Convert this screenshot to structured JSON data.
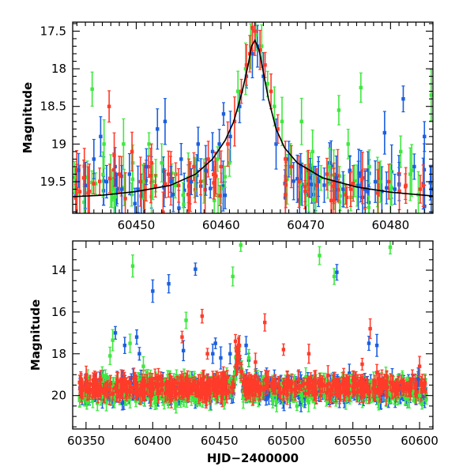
{
  "chart_data": [
    {
      "type": "scatter",
      "title": "",
      "xlabel": "",
      "ylabel": "Magnitude",
      "xlim": [
        60442.5,
        60485
      ],
      "ylim": [
        19.92,
        17.38
      ],
      "y_inverted": true,
      "x_ticks": [
        60450,
        60460,
        60470,
        60480
      ],
      "y_ticks": [
        17.5,
        18,
        18.5,
        19,
        19.5
      ],
      "colors": {
        "blue": "#1a5fe0",
        "green": "#3ee83e",
        "red": "#ff3b2a",
        "model": "#000000"
      },
      "series": [
        {
          "color": "blue",
          "points": [
            [
              60443.2,
              19.35
            ],
            [
              60444.0,
              19.55
            ],
            [
              60445.0,
              19.2
            ],
            [
              60445.8,
              18.9
            ],
            [
              60446.5,
              19.5
            ],
            [
              60447.5,
              19.3
            ],
            [
              60448.3,
              19.6
            ],
            [
              60449.2,
              19.4
            ],
            [
              60450.2,
              19.6
            ],
            [
              60451.2,
              19.3
            ],
            [
              60452.5,
              18.8
            ],
            [
              60453.4,
              18.7
            ],
            [
              60454.1,
              19.5
            ],
            [
              60455.3,
              19.2
            ],
            [
              60456.5,
              19.5
            ],
            [
              60457.3,
              19.0
            ],
            [
              60458.2,
              19.35
            ],
            [
              60459.0,
              19.1
            ],
            [
              60459.8,
              19.0
            ],
            [
              60460.3,
              18.6
            ],
            [
              60461.1,
              18.9
            ],
            [
              60462.2,
              18.5
            ],
            [
              60463.0,
              18.1
            ],
            [
              60463.7,
              17.8
            ],
            [
              60464.3,
              17.7
            ],
            [
              60465.0,
              18.1
            ],
            [
              60466.5,
              19.0
            ],
            [
              60468.0,
              19.2
            ],
            [
              60469.4,
              19.3
            ],
            [
              60470.5,
              19.45
            ],
            [
              60471.5,
              19.5
            ],
            [
              60472.8,
              19.25
            ],
            [
              60473.6,
              19.45
            ],
            [
              60474.4,
              19.6
            ],
            [
              60475.2,
              19.35
            ],
            [
              60476.2,
              19.55
            ],
            [
              60477.0,
              19.6
            ],
            [
              60478.2,
              19.5
            ],
            [
              60479.3,
              18.85
            ],
            [
              60480.5,
              19.6
            ],
            [
              60481.5,
              18.4
            ],
            [
              60482.8,
              19.3
            ],
            [
              60484.0,
              18.9
            ],
            [
              60484.8,
              19.6
            ]
          ]
        },
        {
          "color": "green",
          "points": [
            [
              60444.8,
              18.27
            ],
            [
              60446.2,
              19.0
            ],
            [
              60447.2,
              19.6
            ],
            [
              60448.5,
              19.0
            ],
            [
              60449.6,
              19.25
            ],
            [
              60450.8,
              19.5
            ],
            [
              60451.5,
              19.0
            ],
            [
              60453.0,
              19.25
            ],
            [
              60454.6,
              19.55
            ],
            [
              60457.0,
              19.4
            ],
            [
              60459.6,
              19.2
            ],
            [
              60461.0,
              19.25
            ],
            [
              60462.0,
              18.3
            ],
            [
              60462.9,
              18.0
            ],
            [
              60463.5,
              17.7
            ],
            [
              60464.1,
              17.55
            ],
            [
              60464.8,
              17.7
            ],
            [
              60465.5,
              18.2
            ],
            [
              60466.3,
              18.5
            ],
            [
              60467.2,
              18.7
            ],
            [
              60468.2,
              19.2
            ],
            [
              60469.5,
              18.7
            ],
            [
              60470.8,
              19.1
            ],
            [
              60471.8,
              19.45
            ],
            [
              60472.8,
              19.3
            ],
            [
              60473.9,
              18.55
            ],
            [
              60475.0,
              19.0
            ],
            [
              60476.5,
              18.25
            ],
            [
              60477.5,
              19.3
            ],
            [
              60478.8,
              19.5
            ],
            [
              60480.0,
              19.6
            ],
            [
              60481.2,
              19.1
            ],
            [
              60482.5,
              19.35
            ],
            [
              60484.8,
              18.35
            ]
          ]
        },
        {
          "color": "red",
          "points": [
            [
              60443.0,
              19.6
            ],
            [
              60443.8,
              19.45
            ],
            [
              60446.8,
              18.5
            ],
            [
              60447.4,
              19.15
            ],
            [
              60448.0,
              19.4
            ],
            [
              60449.5,
              19.1
            ],
            [
              60450.5,
              19.5
            ],
            [
              60451.8,
              19.25
            ],
            [
              60453.8,
              19.4
            ],
            [
              60455.0,
              19.55
            ],
            [
              60456.8,
              19.3
            ],
            [
              60457.6,
              19.5
            ],
            [
              60458.5,
              19.2
            ],
            [
              60459.3,
              19.4
            ],
            [
              60460.0,
              19.3
            ],
            [
              60460.8,
              19.0
            ],
            [
              60461.6,
              18.7
            ],
            [
              60462.4,
              18.3
            ],
            [
              60463.0,
              17.95
            ],
            [
              60463.4,
              17.8
            ],
            [
              60463.7,
              17.45
            ],
            [
              60464.0,
              17.5
            ],
            [
              60464.6,
              17.75
            ],
            [
              60465.2,
              17.95
            ],
            [
              60465.9,
              18.3
            ],
            [
              60466.7,
              18.8
            ],
            [
              60467.6,
              19.2
            ],
            [
              60468.3,
              19.3
            ],
            [
              60469.2,
              19.5
            ],
            [
              60470.3,
              19.35
            ],
            [
              60471.3,
              19.55
            ],
            [
              60472.5,
              19.4
            ],
            [
              60473.3,
              19.5
            ],
            [
              60475.3,
              19.6
            ],
            [
              60476.7,
              19.45
            ],
            [
              60478.5,
              19.65
            ],
            [
              60479.8,
              19.5
            ],
            [
              60481.8,
              19.55
            ],
            [
              60483.5,
              19.6
            ]
          ]
        }
      ],
      "model_curve": [
        [
          60442.5,
          19.7
        ],
        [
          60446,
          19.68
        ],
        [
          60450,
          19.63
        ],
        [
          60454,
          19.55
        ],
        [
          60457,
          19.4
        ],
        [
          60459,
          19.2
        ],
        [
          60460.5,
          18.95
        ],
        [
          60461.5,
          18.7
        ],
        [
          60462.5,
          18.3
        ],
        [
          60463.2,
          17.95
        ],
        [
          60463.6,
          17.7
        ],
        [
          60464.0,
          17.62
        ],
        [
          60464.5,
          17.75
        ],
        [
          60465.0,
          18.05
        ],
        [
          60465.6,
          18.4
        ],
        [
          60466.5,
          18.8
        ],
        [
          60467.5,
          19.05
        ],
        [
          60469,
          19.25
        ],
        [
          60472,
          19.45
        ],
        [
          60476,
          19.57
        ],
        [
          60480,
          19.64
        ],
        [
          60485,
          19.69
        ]
      ]
    },
    {
      "type": "scatter",
      "title": "",
      "xlabel": "HJD−2400000",
      "ylabel": "Magnitude",
      "xlim": [
        60340,
        60610
      ],
      "ylim": [
        21.6,
        12.6
      ],
      "y_inverted": true,
      "x_ticks": [
        60350,
        60400,
        60450,
        60500,
        60550,
        60600
      ],
      "y_ticks": [
        14,
        16,
        18,
        20
      ],
      "series": [
        {
          "color": "blue",
          "points": [
            [
              60372,
              17.0
            ],
            [
              60379,
              17.6
            ],
            [
              60388,
              17.2
            ],
            [
              60390,
              18.0
            ],
            [
              60400,
              15.0
            ],
            [
              60412,
              14.65
            ],
            [
              60423,
              17.85
            ],
            [
              60432,
              13.95
            ],
            [
              60445,
              18.0
            ],
            [
              60447,
              17.5
            ],
            [
              60451,
              18.2
            ],
            [
              60458,
              18.0
            ],
            [
              60470,
              17.6
            ],
            [
              60472,
              18.3
            ],
            [
              60538,
              14.1
            ],
            [
              60562,
              17.5
            ],
            [
              60568,
              17.6
            ],
            [
              60599,
              19.2
            ]
          ]
        },
        {
          "color": "green",
          "points": [
            [
              60370,
              17.35
            ],
            [
              60368,
              18.1
            ],
            [
              60383,
              17.5
            ],
            [
              60385,
              13.8
            ],
            [
              60393,
              18.6
            ],
            [
              60425,
              16.4
            ],
            [
              60460,
              14.3
            ],
            [
              60466,
              12.8
            ],
            [
              60472,
              18.2
            ],
            [
              60525,
              13.3
            ],
            [
              60536,
              14.3
            ],
            [
              60578,
              12.9
            ],
            [
              60600,
              20.0
            ]
          ]
        },
        {
          "color": "red",
          "points": [
            [
              60422,
              17.2
            ],
            [
              60437,
              16.2
            ],
            [
              60441,
              18.0
            ],
            [
              60453,
              18.9
            ],
            [
              60462,
              17.4
            ],
            [
              60465,
              17.6
            ],
            [
              60477,
              18.4
            ],
            [
              60484,
              16.5
            ],
            [
              60498,
              17.8
            ],
            [
              60517,
              18.0
            ],
            [
              60557,
              18.5
            ],
            [
              60563,
              16.8
            ],
            [
              60568,
              18.9
            ],
            [
              60600,
              18.6
            ]
          ]
        }
      ],
      "bands": [
        {
          "color": "blue",
          "center": 19.7,
          "spread": 0.55
        },
        {
          "color": "green",
          "center": 19.75,
          "spread": 0.6
        },
        {
          "color": "red",
          "center": 19.6,
          "spread": 0.45
        }
      ],
      "peak": {
        "x": 60464,
        "y": 17.5
      }
    }
  ]
}
